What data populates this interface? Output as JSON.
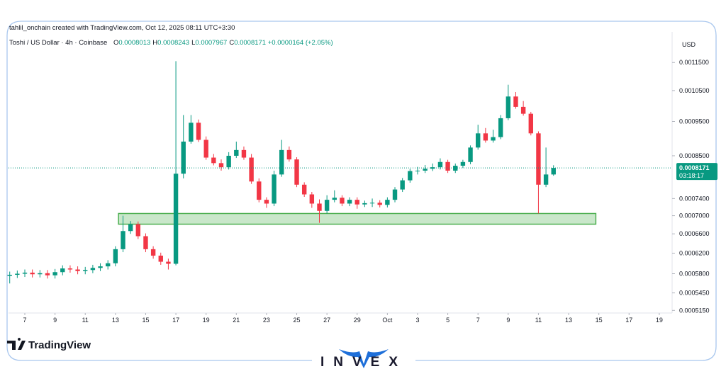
{
  "chart_data": {
    "type": "candlestick",
    "credit": "tahlil_onchain created with TradingView.com, Oct 12, 2025 08:11 UTC+3:30",
    "symbol": "Toshi / US Dollar · 4h · Coinbase",
    "ohlc_legend": [
      {
        "label": "O",
        "text": "0.0008013"
      },
      {
        "label": "H",
        "text": "0.0008243"
      },
      {
        "label": "L",
        "text": "0.0007967"
      },
      {
        "label": "C",
        "text": "0.0008171"
      }
    ],
    "change": "+0.0000164 (+2.05%)",
    "currency": "USD",
    "branding": "TradingView",
    "watermark": "INVEX",
    "log_scale": true,
    "grid": false,
    "up_color": "#089981",
    "down_color": "#f23645",
    "xlim": [
      5.92,
      49.85
    ],
    "xticks": [
      7,
      9,
      11,
      13,
      15,
      17,
      19,
      21,
      23,
      25,
      27,
      29,
      {
        "value": 31,
        "label": "Oct"
      },
      {
        "value": 33,
        "label": "3"
      },
      {
        "value": 35,
        "label": "5"
      },
      {
        "value": 37,
        "label": "7"
      },
      {
        "value": 39,
        "label": "9"
      },
      {
        "value": 41,
        "label": "11"
      },
      {
        "value": 43,
        "label": "13"
      },
      {
        "value": 45,
        "label": "15"
      },
      {
        "value": 47,
        "label": "17"
      },
      {
        "value": 49,
        "label": "19"
      }
    ],
    "ylim": [
      0.000513,
      0.00127
    ],
    "yticks": [
      {
        "value": 0.00115,
        "label": "0.0011500"
      },
      {
        "value": 0.00105,
        "label": "0.0010500"
      },
      {
        "value": 0.00095,
        "label": "0.0009500"
      },
      {
        "value": 0.00085,
        "label": "0.0008500"
      },
      {
        "value": 0.00074,
        "label": "0.0007400"
      },
      {
        "value": 0.0007,
        "label": "0.0007000"
      },
      {
        "value": 0.00066,
        "label": "0.0006600"
      },
      {
        "value": 0.00062,
        "label": "0.0006200"
      },
      {
        "value": 0.00058,
        "label": "0.0005800"
      },
      {
        "value": 0.000545,
        "label": "0.0005450"
      },
      {
        "value": 0.000515,
        "label": "0.0005150"
      }
    ],
    "x": [
      6,
      6.5,
      7,
      7.5,
      8,
      8.5,
      9,
      9.5,
      10,
      10.5,
      11,
      11.5,
      12,
      12.5,
      13,
      13.5,
      14,
      14.5,
      15,
      15.5,
      16,
      16.5,
      17,
      17.5,
      18,
      18.5,
      19,
      19.5,
      20,
      20.5,
      21,
      21.5,
      22,
      22.5,
      23,
      23.5,
      24,
      24.5,
      25,
      25.5,
      26,
      26.5,
      27,
      27.5,
      28,
      28.5,
      29,
      29.5,
      30,
      30.5,
      31,
      31.5,
      32,
      32.5,
      33,
      33.5,
      34,
      34.5,
      35,
      35.5,
      36,
      36.5,
      37,
      37.5,
      38,
      38.5,
      39,
      39.5,
      40,
      40.5,
      41,
      41.5,
      42
    ],
    "open": [
      0.000576,
      0.000578,
      0.00058,
      0.000582,
      0.000579,
      0.000581,
      0.000577,
      0.000583,
      0.00059,
      0.000588,
      0.000585,
      0.000587,
      0.000591,
      0.000594,
      0.0006,
      0.000628,
      0.000666,
      0.000681,
      0.000655,
      0.000628,
      0.000615,
      0.000603,
      0.000599,
      0.000802,
      0.00089,
      0.000946,
      0.000895,
      0.000845,
      0.00083,
      0.000819,
      0.00085,
      0.000866,
      0.000845,
      0.000782,
      0.000737,
      0.000728,
      0.0008,
      0.000866,
      0.00084,
      0.000774,
      0.00075,
      0.000728,
      0.000711,
      0.000737,
      0.000742,
      0.000728,
      0.000737,
      0.000726,
      0.000729,
      0.00073,
      0.000725,
      0.000737,
      0.000762,
      0.000785,
      0.000809,
      0.00081,
      0.000815,
      0.000819,
      0.000833,
      0.00081,
      0.000823,
      0.000833,
      0.000873,
      0.000914,
      0.000893,
      0.000903,
      0.00096,
      0.00103,
      0.000996,
      0.000974,
      0.000914,
      0.000774,
      0.0008
    ],
    "high": [
      0.000584,
      0.000586,
      0.000588,
      0.000588,
      0.000587,
      0.000587,
      0.000589,
      0.000596,
      0.000596,
      0.000594,
      0.000593,
      0.000597,
      0.0006,
      0.000606,
      0.000634,
      0.0007,
      0.000688,
      0.000687,
      0.000661,
      0.000634,
      0.000621,
      0.000609,
      0.001155,
      0.00097,
      0.00097,
      0.000956,
      0.000905,
      0.000855,
      0.00084,
      0.00086,
      0.00089,
      0.000876,
      0.000855,
      0.00079,
      0.000743,
      0.00081,
      0.000895,
      0.000876,
      0.000846,
      0.00078,
      0.000756,
      0.000738,
      0.000748,
      0.00076,
      0.000748,
      0.000743,
      0.000743,
      0.000735,
      0.00074,
      0.000736,
      0.000743,
      0.000768,
      0.000791,
      0.000815,
      0.00082,
      0.000825,
      0.000829,
      0.000843,
      0.000839,
      0.000829,
      0.000839,
      0.000879,
      0.00094,
      0.00093,
      0.000925,
      0.00097,
      0.00107,
      0.001045,
      0.001015,
      0.00098,
      0.00092,
      0.000873,
      0.0008243
    ],
    "low": [
      0.000562,
      0.000572,
      0.000574,
      0.000573,
      0.000573,
      0.000571,
      0.000571,
      0.000577,
      0.000582,
      0.000579,
      0.000579,
      0.000581,
      0.000585,
      0.000588,
      0.000594,
      0.000622,
      0.00066,
      0.000649,
      0.000622,
      0.000609,
      0.000597,
      0.000588,
      0.000596,
      0.00079,
      0.000884,
      0.000889,
      0.000839,
      0.000824,
      0.00081,
      0.000813,
      0.000844,
      0.000839,
      0.000776,
      0.000731,
      0.000718,
      0.000722,
      0.000794,
      0.000834,
      0.000768,
      0.000744,
      0.000718,
      0.000684,
      0.000705,
      0.000731,
      0.000722,
      0.000722,
      0.000716,
      0.00072,
      0.00072,
      0.000719,
      0.000719,
      0.000731,
      0.000756,
      0.000779,
      0.0008,
      0.000804,
      0.000809,
      0.000813,
      0.000804,
      0.000804,
      0.000817,
      0.000827,
      0.000867,
      0.000887,
      0.000887,
      0.000897,
      0.000954,
      0.00099,
      0.000968,
      0.000908,
      0.000705,
      0.000768,
      0.0007967
    ],
    "close": [
      0.000578,
      0.00058,
      0.000582,
      0.000579,
      0.000581,
      0.000577,
      0.000583,
      0.00059,
      0.000588,
      0.000585,
      0.000587,
      0.000591,
      0.000594,
      0.0006,
      0.000628,
      0.000666,
      0.000681,
      0.000655,
      0.000628,
      0.000615,
      0.000603,
      0.000599,
      0.000802,
      0.00089,
      0.000946,
      0.000895,
      0.000845,
      0.00083,
      0.000819,
      0.00085,
      0.000866,
      0.000845,
      0.000782,
      0.000737,
      0.000728,
      0.0008,
      0.000866,
      0.00084,
      0.000774,
      0.00075,
      0.000728,
      0.000711,
      0.000737,
      0.000742,
      0.000728,
      0.000737,
      0.000726,
      0.000729,
      0.00073,
      0.000725,
      0.000737,
      0.000762,
      0.000785,
      0.000809,
      0.00081,
      0.000815,
      0.000819,
      0.000833,
      0.00081,
      0.000823,
      0.000833,
      0.000873,
      0.000914,
      0.000893,
      0.000903,
      0.00096,
      0.00103,
      0.000996,
      0.000974,
      0.000914,
      0.000774,
      0.0008,
      0.0008171
    ],
    "zone": {
      "x": [
        13.2,
        44.8
      ],
      "y": [
        0.000681,
        0.000705
      ],
      "color": "#4caf50"
    },
    "last_price": {
      "value": 0.0008171,
      "label": "0.0008171"
    },
    "countdown": "03:18:17"
  }
}
